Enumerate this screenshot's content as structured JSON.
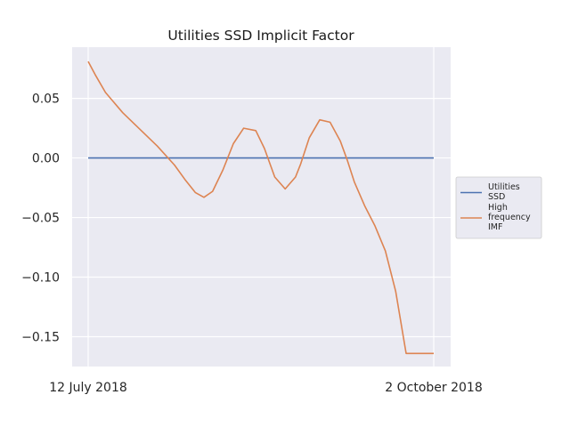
{
  "chart_data": {
    "type": "line",
    "title": "Utilities SSD Implicit Factor",
    "xlabel": "",
    "ylabel": "",
    "x_tick_labels": [
      "12 July 2018",
      "2 October 2018"
    ],
    "y_ticks": [
      0.05,
      0.0,
      -0.05,
      -0.1,
      -0.15
    ],
    "y_tick_labels": [
      "0.05",
      "0.00",
      "−0.05",
      "−0.10",
      "−0.15"
    ],
    "xlim": [
      0,
      1
    ],
    "ylim": [
      -0.175,
      0.093
    ],
    "grid": true,
    "legend_position": "center-right",
    "x": [
      0.0,
      0.02,
      0.05,
      0.1,
      0.15,
      0.2,
      0.25,
      0.28,
      0.31,
      0.335,
      0.36,
      0.39,
      0.42,
      0.45,
      0.485,
      0.51,
      0.54,
      0.57,
      0.6,
      0.615,
      0.64,
      0.67,
      0.7,
      0.73,
      0.75,
      0.77,
      0.8,
      0.83,
      0.86,
      0.89,
      0.92,
      0.95,
      0.98,
      1.0
    ],
    "series": [
      {
        "name": "Utilities\nSSD",
        "color": "#4c72b0",
        "values": [
          0.0,
          0.0,
          0.0,
          0.0,
          0.0,
          0.0,
          0.0,
          0.0,
          0.0,
          0.0,
          0.0,
          0.0,
          0.0,
          0.0,
          0.0,
          0.0,
          0.0,
          0.0,
          0.0,
          0.0,
          0.0,
          0.0,
          0.0,
          0.0,
          0.0,
          0.0,
          0.0,
          0.0,
          0.0,
          0.0,
          0.0,
          0.0,
          0.0,
          0.0
        ]
      },
      {
        "name": "High\nfrequency\nIMF",
        "color": "#dd8452",
        "values": [
          0.081,
          0.07,
          0.055,
          0.038,
          0.024,
          0.01,
          -0.006,
          -0.018,
          -0.029,
          -0.033,
          -0.028,
          -0.01,
          0.012,
          0.025,
          0.023,
          0.008,
          -0.016,
          -0.026,
          -0.016,
          -0.005,
          0.017,
          0.032,
          0.03,
          0.014,
          -0.002,
          -0.02,
          -0.04,
          -0.057,
          -0.078,
          -0.112,
          -0.164,
          -0.164,
          -0.164,
          -0.164
        ]
      }
    ]
  }
}
